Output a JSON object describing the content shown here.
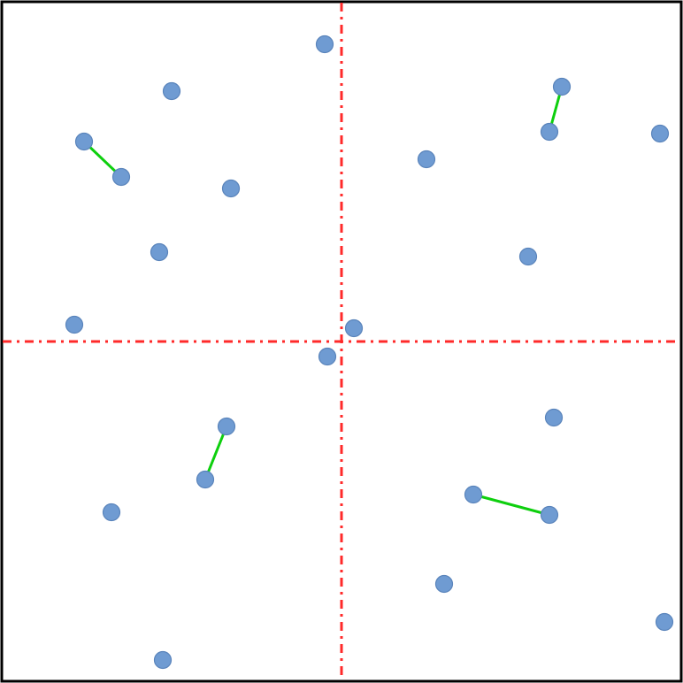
{
  "colors": {
    "background": "#ffffff",
    "border": "#000000",
    "divider": "#ff2a2a",
    "point_fill": "#6f9bd2",
    "point_stroke": "#5a84bb",
    "pair_line": "#0ecf0e"
  },
  "divider_style": "dash-dot",
  "quadrants": 4,
  "points": [
    {
      "id": "p1",
      "quadrant": "top-left"
    },
    {
      "id": "p2",
      "quadrant": "top-left"
    },
    {
      "id": "p3",
      "quadrant": "top-left"
    },
    {
      "id": "p4",
      "quadrant": "top-left"
    },
    {
      "id": "p5",
      "quadrant": "top-left"
    },
    {
      "id": "p6",
      "quadrant": "top-left"
    },
    {
      "id": "p7",
      "quadrant": "top-left"
    },
    {
      "id": "p8",
      "quadrant": "top-right"
    },
    {
      "id": "p9",
      "quadrant": "top-right"
    },
    {
      "id": "p10",
      "quadrant": "top-right"
    },
    {
      "id": "p11",
      "quadrant": "top-right"
    },
    {
      "id": "p12",
      "quadrant": "top-right"
    },
    {
      "id": "p13",
      "quadrant": "top-right"
    },
    {
      "id": "p14",
      "quadrant": "bottom-left"
    },
    {
      "id": "p15",
      "quadrant": "bottom-left"
    },
    {
      "id": "p16",
      "quadrant": "bottom-left"
    },
    {
      "id": "p17",
      "quadrant": "bottom-left"
    },
    {
      "id": "p18",
      "quadrant": "bottom-left"
    },
    {
      "id": "p19",
      "quadrant": "bottom-right"
    },
    {
      "id": "p20",
      "quadrant": "bottom-right"
    },
    {
      "id": "p21",
      "quadrant": "bottom-right"
    },
    {
      "id": "p22",
      "quadrant": "bottom-right"
    },
    {
      "id": "p23",
      "quadrant": "bottom-right"
    }
  ],
  "closest_pairs": [
    {
      "quadrant": "top-left",
      "a": "p2",
      "b": "p3"
    },
    {
      "quadrant": "top-right",
      "a": "p9",
      "b": "p10"
    },
    {
      "quadrant": "bottom-left",
      "a": "p15",
      "b": "p16"
    },
    {
      "quadrant": "bottom-right",
      "a": "p20",
      "b": "p21"
    }
  ]
}
